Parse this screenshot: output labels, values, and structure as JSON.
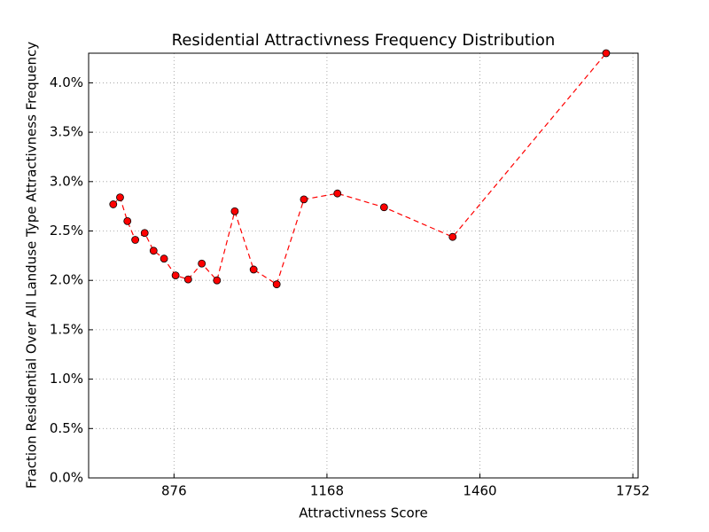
{
  "chart_data": {
    "type": "line",
    "title": "Residential Attractivness Frequency Distribution",
    "x_label": "Attractivness Score",
    "y_label": "Fraction Residential Over All Landuse Type Attractivness Frequency",
    "x": [
      760,
      773,
      787,
      802,
      820,
      837,
      857,
      879,
      903,
      929,
      958,
      992,
      1028,
      1072,
      1124,
      1188,
      1277,
      1408,
      1701
    ],
    "series": [
      {
        "color": "#ff0000",
        "values": [
          2.77,
          2.84,
          2.6,
          2.41,
          2.48,
          2.3,
          2.22,
          2.05,
          2.01,
          2.17,
          2.0,
          2.7,
          2.11,
          1.96,
          2.82,
          2.88,
          2.74,
          2.44,
          4.3
        ]
      }
    ],
    "xlim": [
      713,
      1762
    ],
    "xticks": [
      876,
      1168,
      1460,
      1752
    ],
    "ylim": [
      0,
      4.3
    ],
    "yticks": [
      {
        "value": 0,
        "label": "0.0%"
      },
      {
        "value": 0.5,
        "label": "0.5%"
      },
      {
        "value": 1,
        "label": "1.0%"
      },
      {
        "value": 1.5,
        "label": "1.5%"
      },
      {
        "value": 2,
        "label": "2.0%"
      },
      {
        "value": 2.5,
        "label": "2.5%"
      },
      {
        "value": 3,
        "label": "3.0%"
      },
      {
        "value": 3.5,
        "label": "3.5%"
      },
      {
        "value": 4,
        "label": "4.0%"
      }
    ],
    "grid": true
  }
}
